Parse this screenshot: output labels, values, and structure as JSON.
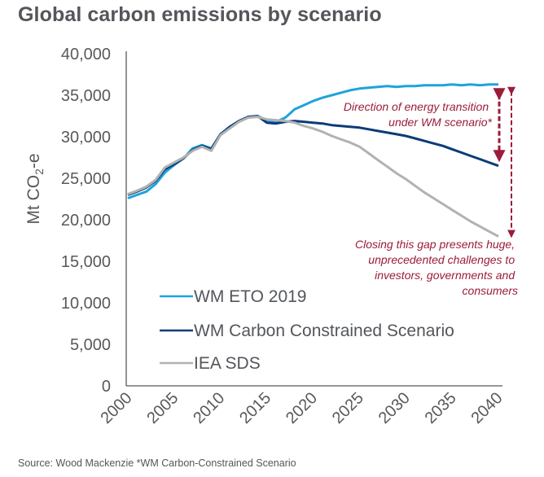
{
  "title": "Global carbon emissions by scenario",
  "source": "Source: Wood Mackenzie *WM Carbon-Constrained Scenario",
  "colors": {
    "wm_eto": "#1ea3dc",
    "wm_cc": "#0b3b7a",
    "iea_sds": "#b2b2b2",
    "annotation": "#9b1c3a",
    "axis": "#595959"
  },
  "chart_data": {
    "type": "line",
    "title": "Global carbon emissions by scenario",
    "xlabel": "",
    "ylabel": "Mt CO2-e",
    "ylabel_parts": {
      "main": "Mt CO",
      "sub": "2",
      "suffix": "-e"
    },
    "xlim": [
      2000,
      2040
    ],
    "ylim": [
      0,
      40000
    ],
    "x_ticks": [
      "2000",
      "2005",
      "2010",
      "2015",
      "2020",
      "2025",
      "2030",
      "2035",
      "2040"
    ],
    "y_ticks": [
      "0",
      "5,000",
      "10,000",
      "15,000",
      "20,000",
      "25,000",
      "30,000",
      "35,000",
      "40,000"
    ],
    "grid": false,
    "legend_position": "bottom-left inside",
    "x": [
      2000,
      2001,
      2002,
      2003,
      2004,
      2005,
      2006,
      2007,
      2008,
      2009,
      2010,
      2011,
      2012,
      2013,
      2014,
      2015,
      2016,
      2017,
      2018,
      2019,
      2020,
      2021,
      2022,
      2023,
      2024,
      2025,
      2026,
      2027,
      2028,
      2029,
      2030,
      2031,
      2032,
      2033,
      2034,
      2035,
      2036,
      2037,
      2038,
      2039,
      2040
    ],
    "series": [
      {
        "name": "WM ETO 2019",
        "color_key": "wm_eto",
        "values": [
          22600,
          23000,
          23400,
          24300,
          25700,
          26600,
          27400,
          28600,
          29000,
          28600,
          30300,
          31200,
          31900,
          32300,
          32500,
          32000,
          31800,
          32300,
          33300,
          33800,
          34300,
          34700,
          35000,
          35300,
          35600,
          35800,
          35900,
          36000,
          36100,
          36000,
          36100,
          36100,
          36200,
          36200,
          36200,
          36300,
          36200,
          36300,
          36200,
          36300,
          36300
        ]
      },
      {
        "name": "WM Carbon Constrained Scenario",
        "color_key": "wm_cc",
        "values": [
          23000,
          23400,
          23900,
          24700,
          26100,
          26700,
          27400,
          28400,
          28900,
          28500,
          30300,
          31200,
          31900,
          32400,
          32500,
          31700,
          31600,
          31800,
          31900,
          31800,
          31700,
          31600,
          31400,
          31300,
          31200,
          31100,
          30900,
          30700,
          30500,
          30300,
          30100,
          29800,
          29500,
          29200,
          28900,
          28500,
          28100,
          27700,
          27300,
          26900,
          26500
        ]
      },
      {
        "name": "IEA SDS",
        "color_key": "iea_sds",
        "values": [
          23100,
          23500,
          24000,
          24800,
          26300,
          26900,
          27500,
          28300,
          28800,
          28300,
          30200,
          31000,
          31800,
          32300,
          32400,
          32100,
          32000,
          31900,
          31700,
          31300,
          31000,
          30600,
          30100,
          29700,
          29300,
          28800,
          28000,
          27200,
          26400,
          25600,
          24900,
          24100,
          23300,
          22600,
          21900,
          21200,
          20500,
          19800,
          19200,
          18600,
          18000
        ]
      }
    ],
    "annotations": [
      {
        "lines": [
          "Direction of energy transition",
          "under WM scenario*"
        ],
        "arrow": "between WM ETO 2019 and WM Carbon Constrained Scenario at 2040"
      },
      {
        "lines": [
          "Closing this gap presents huge,",
          "unprecedented challenges to",
          "investors, governments and",
          "consumers"
        ],
        "arrow": "between WM ETO 2019 and IEA SDS at 2040"
      }
    ]
  }
}
